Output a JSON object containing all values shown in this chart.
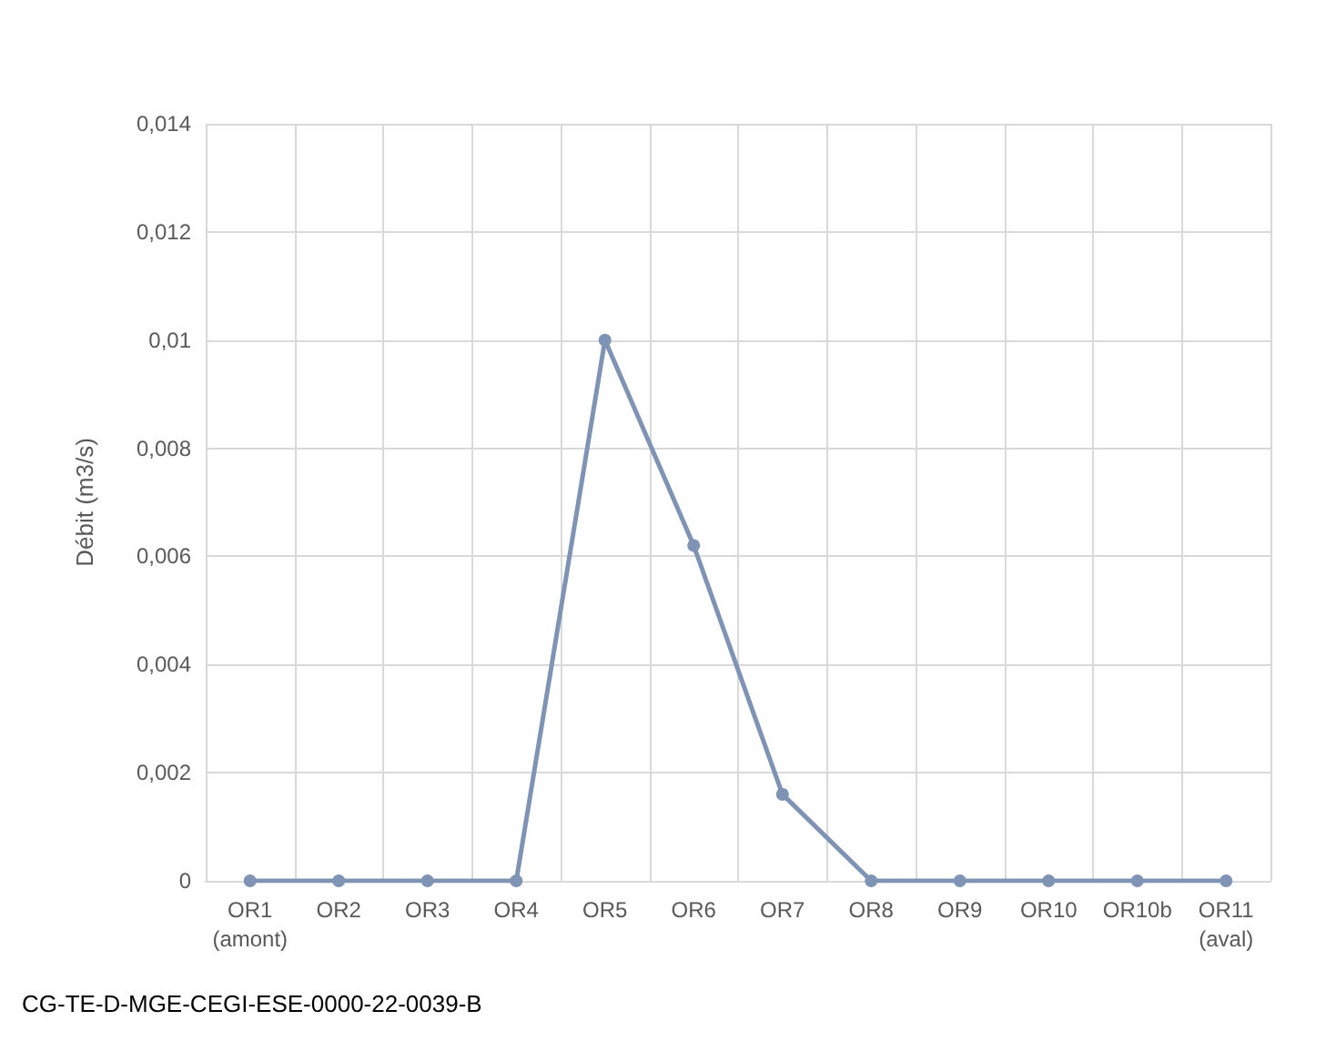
{
  "chart_data": {
    "type": "line",
    "ylabel": "Débit (m3/s)",
    "categories": [
      "OR1\n(amont)",
      "OR2",
      "OR3",
      "OR4",
      "OR5",
      "OR6",
      "OR7",
      "OR8",
      "OR9",
      "OR10",
      "OR10b",
      "OR11\n(aval)"
    ],
    "series": [
      {
        "color": "#7f93b5",
        "values": [
          0,
          0,
          0,
          0,
          0.01,
          0.0062,
          0.0016,
          0,
          0,
          0,
          0,
          0
        ]
      }
    ],
    "ylim": [
      0,
      0.014
    ],
    "yticks": [
      {
        "value": 0,
        "label": "0"
      },
      {
        "value": 0.002,
        "label": "0,002"
      },
      {
        "value": 0.004,
        "label": "0,004"
      },
      {
        "value": 0.006,
        "label": "0,006"
      },
      {
        "value": 0.008,
        "label": "0,008"
      },
      {
        "value": 0.01,
        "label": "0,01"
      },
      {
        "value": 0.012,
        "label": "0,012"
      },
      {
        "value": 0.014,
        "label": "0,014"
      }
    ],
    "grid": true,
    "marker": "circle",
    "line_style": "solid",
    "annotations": [
      "CG-TE-D-MGE-CEGI-ESE-0000-22-0039-B"
    ]
  }
}
